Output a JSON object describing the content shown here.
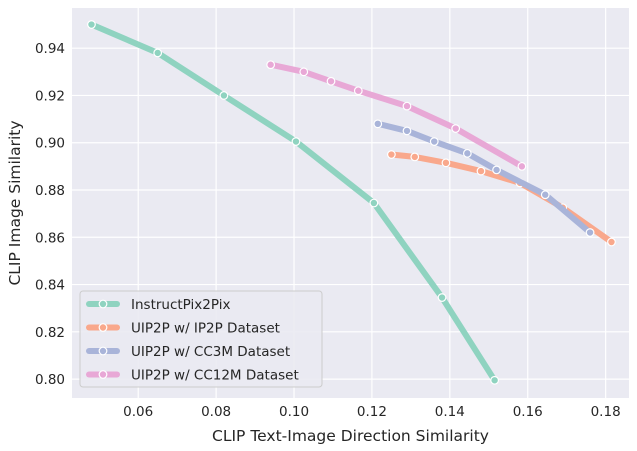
{
  "chart_data": {
    "type": "line",
    "title": "",
    "xlabel": "CLIP Text-Image Direction Similarity",
    "ylabel": "CLIP Image Similarity",
    "xlim": [
      0.043,
      0.186
    ],
    "ylim": [
      0.792,
      0.957
    ],
    "xticks": [
      0.06,
      0.08,
      0.1,
      0.12,
      0.14,
      0.16,
      0.18
    ],
    "xtick_labels": [
      "0.06",
      "0.08",
      "0.10",
      "0.12",
      "0.14",
      "0.16",
      "0.18"
    ],
    "yticks": [
      0.8,
      0.82,
      0.84,
      0.86,
      0.88,
      0.9,
      0.92,
      0.94
    ],
    "ytick_labels": [
      "0.80",
      "0.82",
      "0.84",
      "0.86",
      "0.88",
      "0.90",
      "0.92",
      "0.94"
    ],
    "grid": true,
    "legend_position": "bottom-left",
    "background": "#eaeaf2",
    "series": [
      {
        "name": "InstructPix2Pix",
        "color": "#8fd3c0",
        "x": [
          0.048,
          0.065,
          0.082,
          0.1005,
          0.1205,
          0.138,
          0.1515
        ],
        "y": [
          0.95,
          0.938,
          0.92,
          0.9005,
          0.8745,
          0.8345,
          0.7995
        ]
      },
      {
        "name": "UIP2P w/ IP2P Dataset",
        "color": "#f9a88c",
        "x": [
          0.125,
          0.131,
          0.139,
          0.148,
          0.158,
          0.169,
          0.1815
        ],
        "y": [
          0.895,
          0.894,
          0.8915,
          0.888,
          0.883,
          0.8725,
          0.858
        ]
      },
      {
        "name": "UIP2P w/ CC3M Dataset",
        "color": "#a9b4d9",
        "x": [
          0.1215,
          0.129,
          0.136,
          0.1445,
          0.152,
          0.1645,
          0.176
        ],
        "y": [
          0.908,
          0.905,
          0.9005,
          0.8955,
          0.8885,
          0.878,
          0.862
        ]
      },
      {
        "name": "UIP2P w/ CC12M Dataset",
        "color": "#e8a8d6",
        "x": [
          0.094,
          0.1025,
          0.1095,
          0.1165,
          0.129,
          0.1415,
          0.1585
        ],
        "y": [
          0.933,
          0.93,
          0.926,
          0.922,
          0.9155,
          0.906,
          0.89
        ]
      }
    ]
  }
}
